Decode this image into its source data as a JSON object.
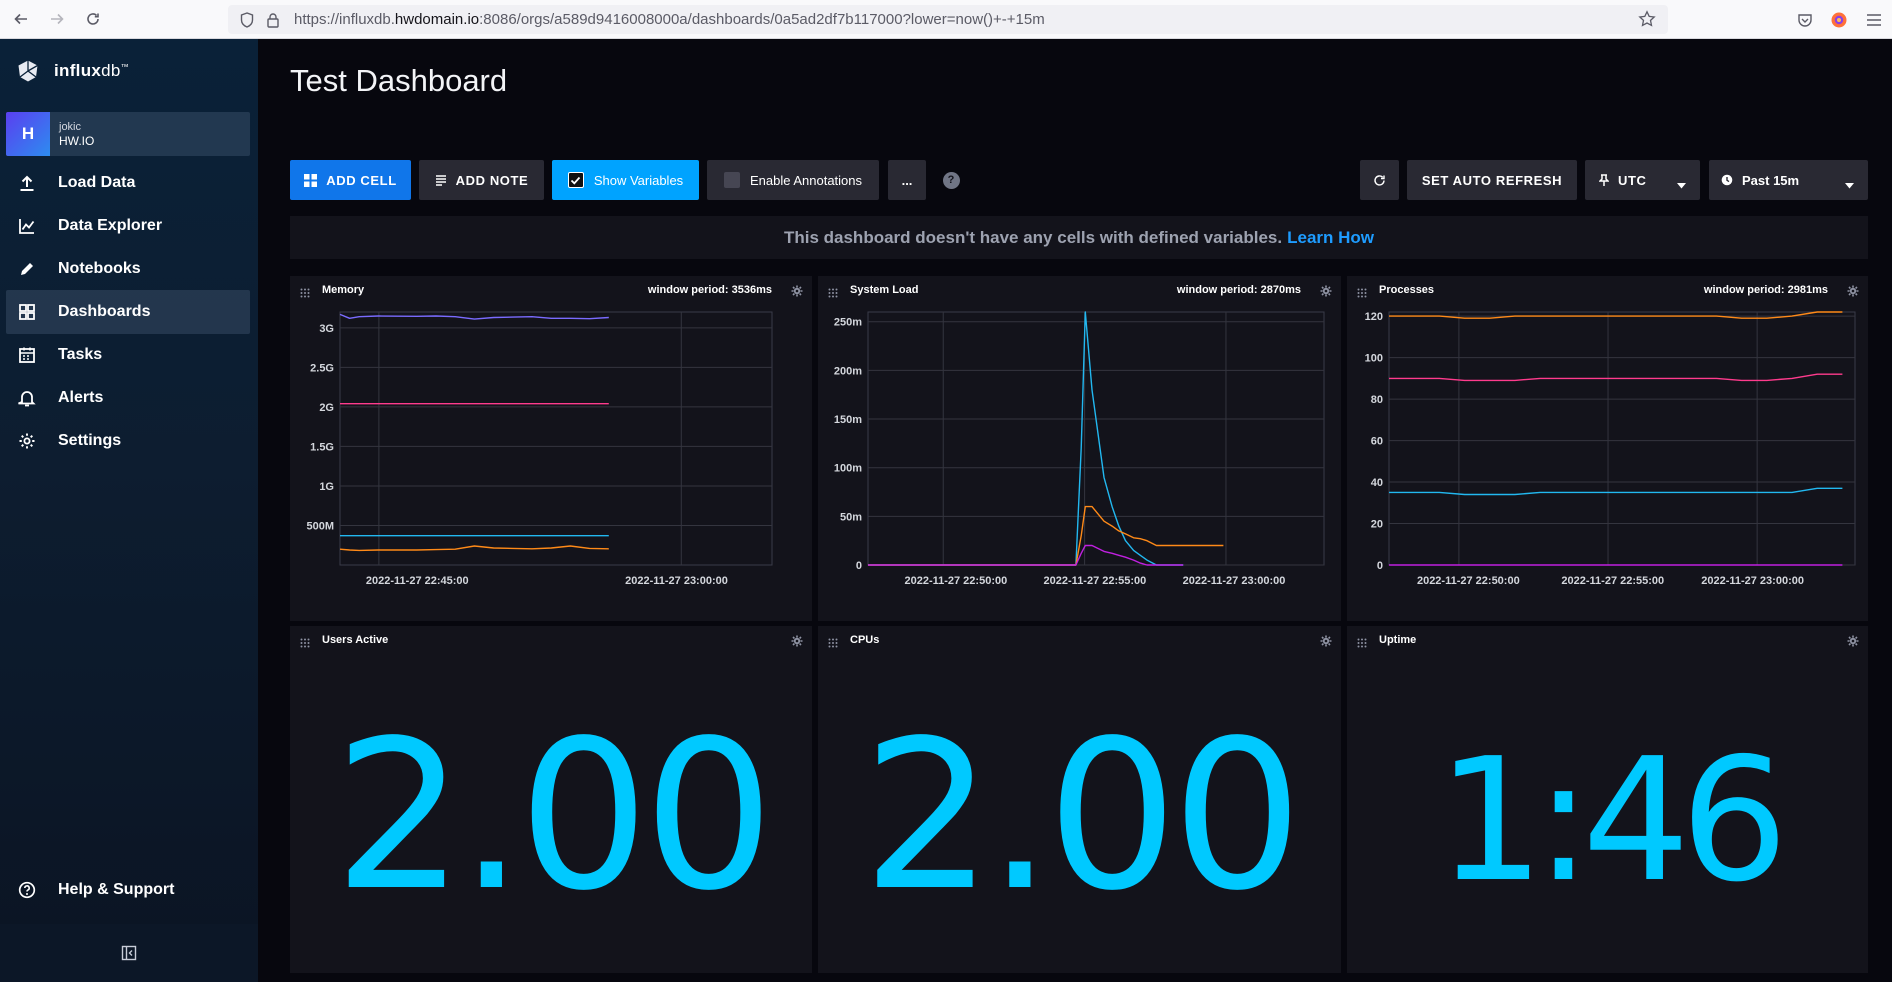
{
  "browser": {
    "url_prefix": "https://influxdb.",
    "url_host": "hwdomain.io",
    "url_suffix": ":8086/orgs/a589d9416008000a/dashboards/0a5ad2df7b117000?lower=now()+-+15m"
  },
  "sidebar": {
    "logo_text_bold": "influx",
    "logo_text_light": "db",
    "logo_tm": "™",
    "org": {
      "avatar_letter": "H",
      "user": "jokic",
      "name": "HW.IO"
    },
    "items": [
      {
        "label": "Load Data",
        "icon": "upload-icon"
      },
      {
        "label": "Data Explorer",
        "icon": "chart-line-icon"
      },
      {
        "label": "Notebooks",
        "icon": "pencil-icon"
      },
      {
        "label": "Dashboards",
        "icon": "grid-icon",
        "active": true
      },
      {
        "label": "Tasks",
        "icon": "calendar-icon"
      },
      {
        "label": "Alerts",
        "icon": "bell-icon"
      },
      {
        "label": "Settings",
        "icon": "gear-icon"
      }
    ],
    "help": {
      "label": "Help & Support",
      "icon": "question-icon"
    }
  },
  "header": {
    "title": "Test Dashboard"
  },
  "toolbar": {
    "add_cell": "ADD CELL",
    "add_note": "ADD NOTE",
    "show_variables": "Show Variables",
    "show_variables_checked": true,
    "enable_annotations": "Enable Annotations",
    "enable_annotations_checked": false,
    "more": "...",
    "help": "?",
    "auto_refresh": "SET AUTO REFRESH",
    "timezone": "UTC",
    "time_range": "Past 15m"
  },
  "banner": {
    "message": "This dashboard doesn't have any cells with defined variables.",
    "link": "Learn How"
  },
  "cells": {
    "memory": {
      "title": "Memory",
      "period": "window period: 3536ms"
    },
    "system_load": {
      "title": "System Load",
      "period": "window period: 2870ms"
    },
    "processes": {
      "title": "Processes",
      "period": "window period: 2981ms"
    },
    "users_active": {
      "title": "Users Active",
      "value": "2.00"
    },
    "cpus": {
      "title": "CPUs",
      "value": "2.00"
    },
    "uptime": {
      "title": "Uptime",
      "value": "1:46"
    }
  },
  "colors": {
    "blue_button": "#1076ea",
    "cyan_button": "#00a3ff",
    "single_stat": "#00c9ff",
    "series_purple": "#7a6bff",
    "series_pink": "#ff3b8d",
    "series_cyan": "#22b8f0",
    "series_orange": "#ff8a18",
    "series_magenta": "#c020e0"
  },
  "chart_data": [
    {
      "type": "line",
      "title": "Memory",
      "yticks": [
        "3G",
        "2.5G",
        "2G",
        "1.5G",
        "1G",
        "500M"
      ],
      "xticks": [
        "2022-11-27 22:45:00",
        "2022-11-27 23:00:00"
      ],
      "ylim": [
        0,
        3200
      ],
      "grid": true,
      "x": [
        0,
        0.5,
        1,
        2,
        4,
        5,
        6,
        7,
        8,
        9,
        10,
        11,
        12,
        13,
        14
      ],
      "series": [
        {
          "color": "#7a6bff",
          "values": [
            3170,
            3120,
            3140,
            3150,
            3145,
            3150,
            3140,
            3110,
            3130,
            3135,
            3140,
            3120,
            3120,
            3115,
            3130
          ]
        },
        {
          "color": "#ff3b8d",
          "values": [
            2040,
            2040,
            2040,
            2040,
            2040,
            2040,
            2040,
            2040,
            2040,
            2040,
            2040,
            2040,
            2040,
            2040,
            2040
          ]
        },
        {
          "color": "#22b8f0",
          "values": [
            370,
            370,
            370,
            370,
            370,
            370,
            370,
            370,
            370,
            370,
            370,
            370,
            370,
            370,
            370
          ]
        },
        {
          "color": "#ff8a18",
          "values": [
            200,
            190,
            185,
            190,
            190,
            195,
            200,
            240,
            215,
            210,
            205,
            215,
            240,
            210,
            205
          ]
        }
      ]
    },
    {
      "type": "line",
      "title": "System Load",
      "yticks": [
        "250m",
        "200m",
        "150m",
        "100m",
        "50m",
        "0"
      ],
      "xticks": [
        "2022-11-27 22:50:00",
        "2022-11-27 22:55:00",
        "2022-11-27 23:00:00"
      ],
      "ylim": [
        0,
        260
      ],
      "grid": true,
      "x": [
        0,
        2,
        4,
        6,
        8,
        10,
        12,
        14,
        15.5,
        15.9,
        16.2,
        16.7,
        17.6,
        18.2,
        18.7,
        19.2,
        19.8,
        20.3,
        20.8,
        21.5,
        22.2,
        22.8,
        23.5,
        24.5,
        26.5
      ],
      "series": [
        {
          "color": "#22b8f0",
          "values": [
            0,
            0,
            0,
            0,
            0,
            0,
            0,
            0,
            0,
            120,
            260,
            180,
            90,
            60,
            40,
            25,
            15,
            10,
            5,
            0,
            0,
            0,
            0,
            null,
            null
          ]
        },
        {
          "color": "#ff8a18",
          "values": [
            0,
            0,
            0,
            0,
            0,
            0,
            0,
            0,
            0,
            30,
            60,
            60,
            45,
            40,
            35,
            32,
            28,
            27,
            25,
            20,
            20,
            20,
            20,
            20,
            20
          ]
        },
        {
          "color": "#c020e0",
          "values": [
            0,
            0,
            0,
            0,
            0,
            0,
            0,
            0,
            0,
            12,
            20,
            20,
            14,
            12,
            10,
            8,
            5,
            2,
            0,
            0,
            0,
            0,
            0,
            null,
            null
          ]
        }
      ]
    },
    {
      "type": "line",
      "title": "Processes",
      "yticks": [
        "120",
        "100",
        "80",
        "60",
        "40",
        "20",
        "0"
      ],
      "xticks": [
        "2022-11-27 22:50:00",
        "2022-11-27 22:55:00",
        "2022-11-27 23:00:00"
      ],
      "ylim": [
        0,
        122
      ],
      "grid": true,
      "x": [
        0,
        2,
        4,
        6,
        8,
        10,
        12,
        14,
        16,
        18,
        20,
        22,
        24,
        26,
        28,
        30,
        32,
        34,
        36
      ],
      "series": [
        {
          "color": "#ff8a18",
          "values": [
            120,
            120,
            120,
            119,
            119,
            120,
            120,
            120,
            120,
            120,
            120,
            120,
            120,
            120,
            119,
            119,
            120,
            122,
            122
          ]
        },
        {
          "color": "#ff3b8d",
          "values": [
            90,
            90,
            90,
            89,
            89,
            89,
            90,
            90,
            90,
            90,
            90,
            90,
            90,
            90,
            89,
            89,
            90,
            92,
            92
          ]
        },
        {
          "color": "#22b8f0",
          "values": [
            35,
            35,
            35,
            34,
            34,
            34,
            35,
            35,
            35,
            35,
            35,
            35,
            35,
            35,
            35,
            35,
            35,
            37,
            37
          ]
        },
        {
          "color": "#c020e0",
          "values": [
            0,
            0,
            0,
            0,
            0,
            0,
            0,
            0,
            0,
            0,
            0,
            0,
            0,
            0,
            0,
            0,
            0,
            0,
            0
          ]
        }
      ]
    }
  ]
}
